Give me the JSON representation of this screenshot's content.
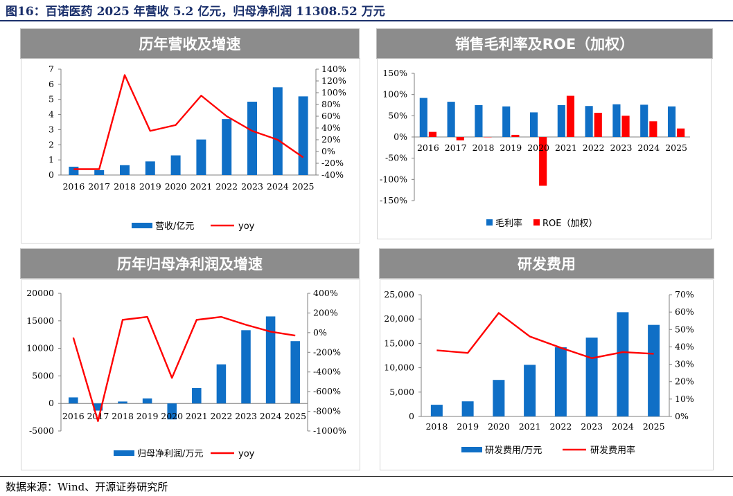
{
  "figure_title": "图16：百诺医药 2025 年营收 5.2 亿元，归母净利润 11308.52 万元",
  "source_note": "数据来源：Wind、开源证券研究所",
  "colors": {
    "bar": "#0f6fc6",
    "line": "#ff0000",
    "header_bg": "#8c8c8c"
  },
  "chart_data": [
    {
      "id": "revenue",
      "header": "历年营收及增速",
      "type": "bar",
      "categories": [
        "2016",
        "2017",
        "2018",
        "2019",
        "2020",
        "2021",
        "2022",
        "2023",
        "2024",
        "2025"
      ],
      "series": [
        {
          "name": "营收/亿元",
          "type": "bar",
          "axis": "left",
          "values": [
            0.55,
            0.32,
            0.65,
            0.9,
            1.3,
            2.35,
            3.7,
            4.85,
            5.8,
            5.2
          ]
        },
        {
          "name": "yoy",
          "type": "line",
          "axis": "right",
          "values": [
            -30,
            -30,
            130,
            35,
            45,
            95,
            60,
            35,
            20,
            -10
          ]
        }
      ],
      "left_axis": {
        "min": 0,
        "max": 7,
        "ticks": [
          "0",
          "1",
          "2",
          "3",
          "4",
          "5",
          "6",
          "7"
        ]
      },
      "right_axis": {
        "min": -40,
        "max": 140,
        "ticks": [
          "-40%",
          "-20%",
          "0%",
          "20%",
          "40%",
          "60%",
          "80%",
          "100%",
          "120%",
          "140%"
        ]
      }
    },
    {
      "id": "margin",
      "header": "销售毛利率及ROE（加权）",
      "type": "bar",
      "categories": [
        "2016",
        "2017",
        "2018",
        "2019",
        "2020",
        "2021",
        "2022",
        "2023",
        "2024",
        "2025"
      ],
      "series": [
        {
          "name": "毛利率",
          "type": "bar",
          "color": "#0f6fc6",
          "values": [
            92,
            83,
            75,
            72,
            58,
            75,
            73,
            77,
            76,
            72
          ]
        },
        {
          "name": "ROE（加权）",
          "type": "bar",
          "color": "#ff0000",
          "values": [
            12,
            -8,
            0,
            5,
            -115,
            97,
            57,
            50,
            37,
            20
          ]
        }
      ],
      "left_axis": {
        "min": -150,
        "max": 150,
        "ticks": [
          "-150%",
          "-100%",
          "-50%",
          "0%",
          "50%",
          "100%",
          "150%"
        ]
      }
    },
    {
      "id": "profit",
      "header": "历年归母净利润及增速",
      "type": "bar",
      "categories": [
        "2016",
        "2017",
        "2018",
        "2019",
        "2020",
        "2021",
        "2022",
        "2023",
        "2024",
        "2025"
      ],
      "series": [
        {
          "name": "归母净利润/万元",
          "type": "bar",
          "axis": "left",
          "values": [
            1100,
            -1300,
            350,
            900,
            -2900,
            2800,
            7100,
            13300,
            15800,
            11308.52
          ]
        },
        {
          "name": "yoy",
          "type": "line",
          "axis": "right",
          "values": [
            -50,
            -900,
            130,
            160,
            -460,
            130,
            160,
            80,
            10,
            -30
          ]
        }
      ],
      "left_axis": {
        "min": -5000,
        "max": 20000,
        "ticks": [
          "-5000",
          "0",
          "5000",
          "10000",
          "15000",
          "20000"
        ]
      },
      "right_axis": {
        "min": -1000,
        "max": 400,
        "ticks": [
          "-1000%",
          "-800%",
          "-600%",
          "-400%",
          "-200%",
          "0%",
          "200%",
          "400%"
        ]
      }
    },
    {
      "id": "rd",
      "header": "研发费用",
      "type": "bar",
      "categories": [
        "2018",
        "2019",
        "2020",
        "2021",
        "2022",
        "2023",
        "2024",
        "2025"
      ],
      "series": [
        {
          "name": "研发费用/万元",
          "type": "bar",
          "axis": "left",
          "values": [
            2400,
            3100,
            7500,
            10600,
            14200,
            16200,
            21400,
            18800
          ]
        },
        {
          "name": "研发费用率",
          "type": "line",
          "axis": "right",
          "values": [
            38,
            36.5,
            59.5,
            46,
            39.5,
            33.5,
            37,
            36
          ]
        }
      ],
      "left_axis": {
        "min": 0,
        "max": 25000,
        "ticks": [
          "0",
          "5,000",
          "10,000",
          "15,000",
          "20,000",
          "25,000"
        ]
      },
      "right_axis": {
        "min": 0,
        "max": 70,
        "ticks": [
          "0%",
          "10%",
          "20%",
          "30%",
          "40%",
          "50%",
          "60%",
          "70%"
        ]
      }
    }
  ]
}
